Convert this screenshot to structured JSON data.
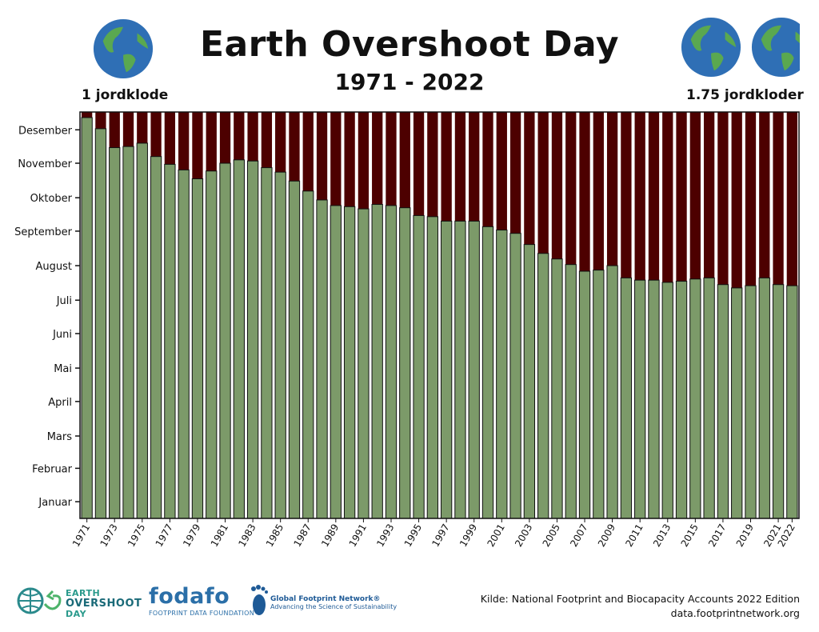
{
  "colors": {
    "green": "#7c9a69",
    "dark": "#4d0000",
    "border": "#111111"
  },
  "header": {
    "title": "Earth Overshoot Day",
    "subtitle": "1971 - 2022",
    "left_label": "1 jordklode",
    "right_label": "1.75 jordkloder"
  },
  "footer": {
    "eod_line1": "EARTH",
    "eod_line2": "OVERSHOOT",
    "eod_line3": "DAY",
    "fodafo": "fodafo",
    "fodafo_sub": "FOOTPRINT DATA FOUNDATION",
    "gfn_line1": "Global Footprint Network®",
    "gfn_line2": "Advancing the Science of Sustainability",
    "source_line1": "Kilde: National Footprint and Biocapacity Accounts 2022 Edition",
    "source_line2": "data.footprintnetwork.org"
  },
  "chart_data": {
    "type": "bar",
    "title": "Earth Overshoot Day",
    "subtitle": "1971 - 2022",
    "ylabel": "",
    "xlabel": "",
    "ylim": [
      0,
      365
    ],
    "y_ticks": [
      {
        "label": "Januar",
        "value": 15
      },
      {
        "label": "Februar",
        "value": 45
      },
      {
        "label": "Mars",
        "value": 74
      },
      {
        "label": "April",
        "value": 105
      },
      {
        "label": "Mai",
        "value": 135
      },
      {
        "label": "Juni",
        "value": 166
      },
      {
        "label": "Juli",
        "value": 196
      },
      {
        "label": "August",
        "value": 227
      },
      {
        "label": "September",
        "value": 258
      },
      {
        "label": "Oktober",
        "value": 288
      },
      {
        "label": "November",
        "value": 319
      },
      {
        "label": "Desember",
        "value": 349
      }
    ],
    "x_tick_labels": [
      "1971",
      "1973",
      "1975",
      "1977",
      "1979",
      "1981",
      "1983",
      "1985",
      "1987",
      "1989",
      "1991",
      "1993",
      "1995",
      "1997",
      "1999",
      "2001",
      "2003",
      "2005",
      "2007",
      "2009",
      "2011",
      "2013",
      "2015",
      "2017",
      "2019",
      "2021",
      "2022"
    ],
    "categories": [
      "1971",
      "1972",
      "1973",
      "1974",
      "1975",
      "1976",
      "1977",
      "1978",
      "1979",
      "1980",
      "1981",
      "1982",
      "1983",
      "1984",
      "1985",
      "1986",
      "1987",
      "1988",
      "1989",
      "1990",
      "1991",
      "1992",
      "1993",
      "1994",
      "1995",
      "1996",
      "1997",
      "1998",
      "1999",
      "2000",
      "2001",
      "2002",
      "2003",
      "2004",
      "2005",
      "2006",
      "2007",
      "2008",
      "2009",
      "2010",
      "2011",
      "2012",
      "2013",
      "2014",
      "2015",
      "2016",
      "2017",
      "2018",
      "2019",
      "2020",
      "2021",
      "2022"
    ],
    "values": [
      360,
      350,
      333,
      334,
      337,
      325,
      318,
      313,
      305,
      312,
      319,
      322,
      321,
      315,
      311,
      303,
      294,
      286,
      281,
      280,
      278,
      282,
      281,
      279,
      272,
      271,
      267,
      267,
      267,
      262,
      259,
      256,
      246,
      238,
      233,
      228,
      222,
      223,
      227,
      216,
      214,
      214,
      212,
      213,
      215,
      216,
      210,
      207,
      209,
      216,
      210,
      209
    ]
  }
}
